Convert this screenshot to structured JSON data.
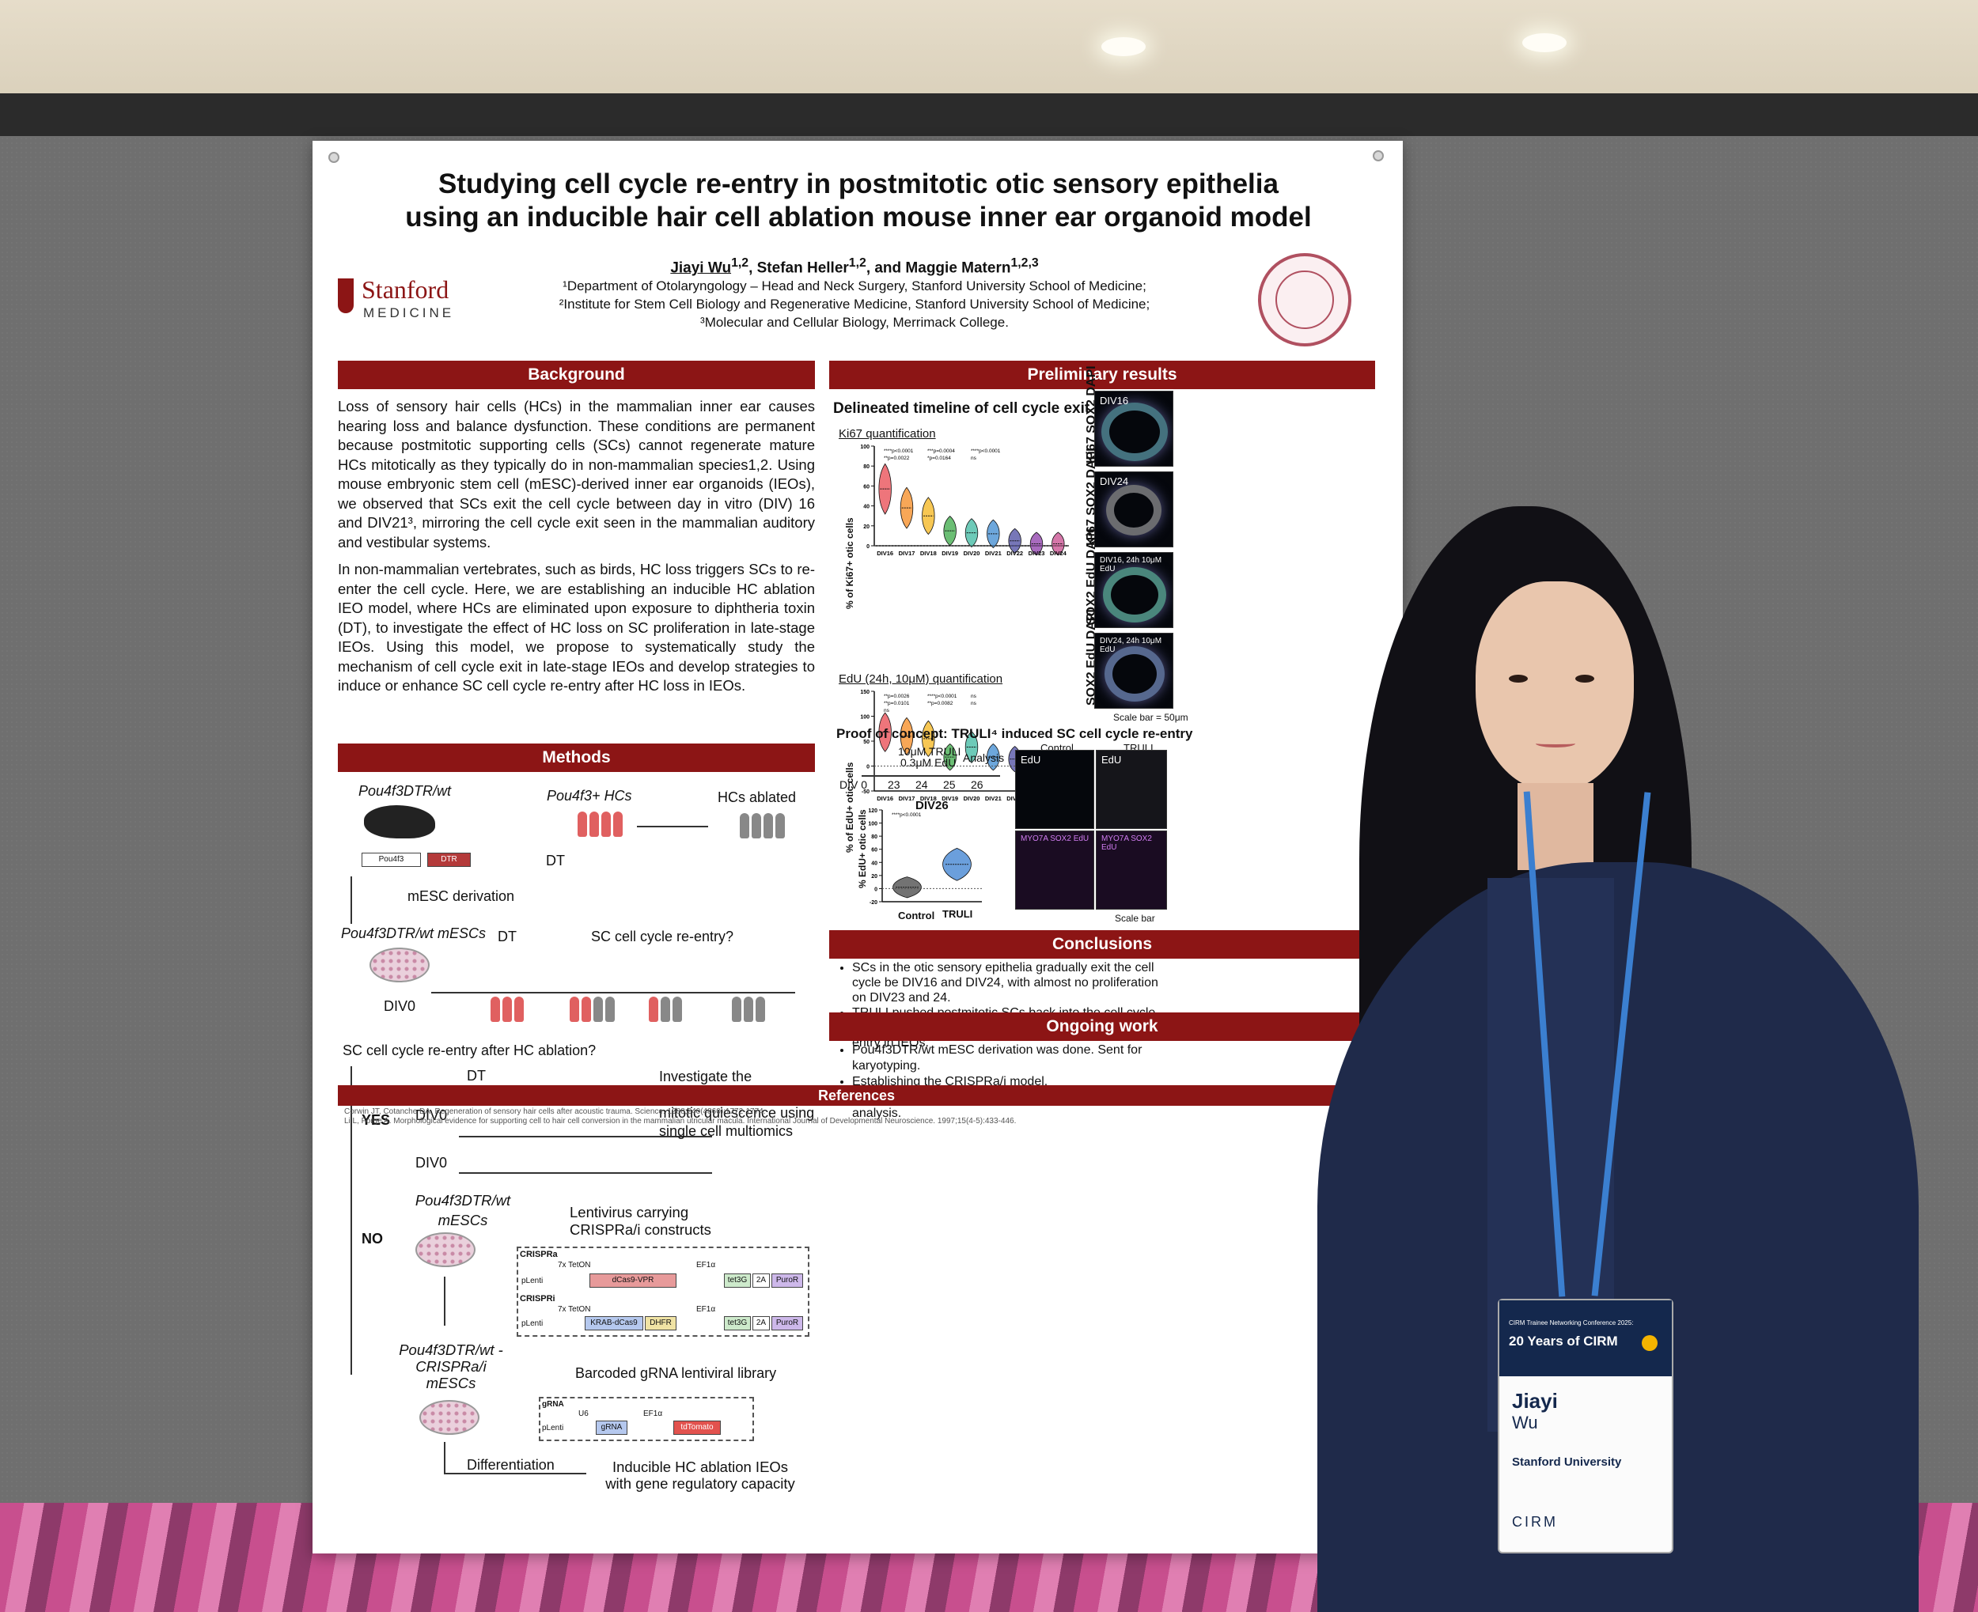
{
  "poster": {
    "title_line1": "Studying cell cycle re-entry in postmitotic otic sensory epithelia",
    "title_line2": "using an inducible hair cell ablation mouse inner ear organoid model",
    "author_first": "Jiayi Wu",
    "author_first_sup": "1,2",
    "authors_rest": ", Stefan Heller",
    "authors_rest_sup": "1,2",
    "authors_and": ", and Maggie Matern",
    "authors_and_sup": "1,2,3",
    "affil1": "¹Department of Otolaryngology – Head and Neck Surgery, Stanford University School of Medicine;",
    "affil2": "²Institute for Stem Cell Biology and Regenerative Medicine, Stanford University School of Medicine;",
    "affil3": "³Molecular and Cellular Biology, Merrimack College.",
    "logo_name": "Stanford",
    "logo_sub": "MEDICINE",
    "background": {
      "header": "Background",
      "para1": "Loss of sensory hair cells (HCs) in the mammalian inner ear causes hearing loss and balance dysfunction. These conditions are permanent because postmitotic supporting cells (SCs) cannot regenerate mature HCs mitotically as they typically do in non-mammalian species1,2. Using mouse embryonic stem cell (mESC)-derived inner ear organoids (IEOs), we observed that SCs exit the cell cycle between day in vitro (DIV) 16 and DIV21³, mirroring the cell cycle exit seen in the mammalian auditory and vestibular systems.",
      "para2": "In non-mammalian vertebrates, such as birds, HC loss triggers SCs to re-enter the cell cycle. Here, we are establishing an inducible HC ablation IEO model, where HCs are eliminated upon exposure to diphtheria toxin (DT), to investigate the effect of HC loss on SC proliferation in late-stage IEOs. Using this model, we propose to systematically study the mechanism of cell cycle exit in late-stage IEOs and develop strategies to induce or enhance SC cell cycle re-entry after HC loss in IEOs."
    },
    "methods": {
      "header": "Methods",
      "pou_mouse": "Pou4f3DTR/wt",
      "pou_hcs": "Pou4f3+ HCs",
      "hcs_ablated": "HCs ablated",
      "gene_pou": "Pou4f3",
      "gene_dtr": "DTR",
      "dt": "DT",
      "mesc_derivation": "mESC derivation",
      "pou_mescs": "Pou4f3DTR/wt mESCs",
      "sc_reentry_q": "SC cell cycle re-entry?",
      "div0": "DIV0",
      "question": "SC cell cycle re-entry after HC ablation?",
      "yes": "YES",
      "no": "NO",
      "investigate": "Investigate the mechanism that disrupts mitotic quiescence using single cell multiomics",
      "pou_mescs2": "Pou4f3DTR/wt mESCs",
      "lentivirus": "Lentivirus carrying CRISPRa/i constructs",
      "crispra": "CRISPRa",
      "crispri": "CRISPRi",
      "tetop": "7x TetON",
      "ef1a": "EF1α",
      "plenti": "pLenti",
      "dcas9vpr": "dCas9-VPR",
      "krab": "KRAB-dCas9",
      "dhfr": "DHFR",
      "tet3g": "tet3G",
      "twoA": "2A",
      "puror": "PuroR",
      "pou_crispr": "Pou4f3DTR/wt -CRISPRa/i mESCs",
      "barcoded": "Barcoded gRNA lentiviral library",
      "grna_box": "gRNA",
      "u6": "U6",
      "grna": "gRNA",
      "tdtomato": "tdTomato",
      "differentiation": "Differentiation",
      "inducible": "Inducible HC ablation IEOs with gene regulatory capacity"
    },
    "results": {
      "header": "Preliminary results",
      "subtitle": "Delineated timeline of cell cycle exit",
      "ki67_label": "Ki67 quantification",
      "ki67_ylabel": "% of Ki67+ otic cells",
      "edu_label": "EdU (24h, 10μM) quantification",
      "edu_ylabel": "% of EdU+ otic cells",
      "proof_title": "Proof of concept: TRULI⁴ induced SC cell cycle re-entry",
      "truli_line1": "10μM TRULI",
      "truli_line2": "0.3μM EdU",
      "analysis": "Analysis",
      "div_axis": "DIV 0",
      "div26": "DIV26",
      "div26_ylabel": "% EdU+ otic cells",
      "control": "Control",
      "truli": "TRULI",
      "scale_bar": "Scale bar = 50μm",
      "scale_bar2": "Scale bar",
      "img_labels": [
        "DIV16",
        "DIV24",
        "DIV16, 24h 10μM EdU",
        "DIV24, 24h 10μM EdU"
      ],
      "stain_labels": [
        "Ki67 SOX2 DAPI",
        "Ki67 SOX2 DAPI",
        "SOX2 EdU DAPI",
        "SOX2 EdU DAPI"
      ],
      "edu_tag": "EdU",
      "myo_tag": "MYO7A SOX2 EdU"
    },
    "conclusions": {
      "header": "Conclusions",
      "items": [
        "SCs in the otic sensory epithelia gradually exit the cell cycle be DIV16 and DIV24, with almost no proliferation on DIV23 and 24.",
        "TRULI pushed postmitotic SCs back into the cell cycle, serving as a -of-concept for inducing SC cell cycle re-entry in IEOs."
      ]
    },
    "ongoing": {
      "header": "Ongoing work",
      "items": [
        "Pou4f3DTR/wt mESC derivation was done. Sent for karyotyping.",
        "Establishing the CRISPRa/i model.",
        "Identifying key SC cell cycle regulators via scRNA-seq analysis."
      ]
    },
    "references": {
      "header": "References",
      "items": [
        "Corwin JT, Cotanche DA. Regeneration of sensory hair cells after acoustic trauma. Science. 1988;240(4860):1772-1774.",
        "Li L, Forge A. Morphological evidence for supporting cell to hair cell conversion in the mammalian utricular macula. International Journal of Developmental Neuroscience. 1997;15(4-5):433-446."
      ]
    }
  },
  "badge": {
    "conference": "CIRM Trainee Networking Conference 2025:",
    "years": "20 Years of CIRM",
    "first_name": "Jiayi",
    "last_name": "Wu",
    "org": "Stanford University",
    "footer": "CIRM"
  },
  "chart_data": [
    {
      "type": "violin",
      "title": "Ki67 quantification",
      "ylabel": "% of Ki67+ otic cells",
      "categories": [
        "DIV16",
        "DIV17",
        "DIV18",
        "DIV19",
        "DIV20",
        "DIV21",
        "DIV22",
        "DIV23",
        "DIV24"
      ],
      "values": [
        57,
        38,
        30,
        15,
        13,
        12,
        5,
        2,
        2
      ],
      "yticks": [
        0,
        20,
        40,
        60,
        80,
        100
      ],
      "ylim": [
        0,
        100
      ],
      "colors": [
        "#e8474f",
        "#f58a1f",
        "#f4b41a",
        "#39a845",
        "#3cb8a0",
        "#3c8ad0",
        "#4a4aa0",
        "#8b3aa8",
        "#c74a8c"
      ],
      "annotations": [
        "****p<0.0001",
        "***p=0.0004",
        "****p<0.0001",
        "**p=0.0022",
        "*p=0.0164",
        "ns"
      ]
    },
    {
      "type": "violin",
      "title": "EdU (24h, 10μM) quantification",
      "ylabel": "% of EdU+ otic cells",
      "categories": [
        "DIV16",
        "DIV17",
        "DIV18",
        "DIV19",
        "DIV20",
        "DIV21",
        "DIV22",
        "DIV23",
        "DIV24"
      ],
      "values": [
        68,
        60,
        55,
        18,
        38,
        18,
        14,
        8,
        6
      ],
      "yticks": [
        -50,
        0,
        50,
        100,
        150
      ],
      "ylim": [
        -50,
        150
      ],
      "colors": [
        "#e8474f",
        "#f58a1f",
        "#f4b41a",
        "#39a845",
        "#3cb8a0",
        "#3c8ad0",
        "#4a4aa0",
        "#8b3aa8",
        "#c74a8c"
      ],
      "annotations": [
        "**p=0.0026",
        "****p<0.0001",
        "ns",
        "**p=0.0101",
        "**p=0.0082",
        "ns",
        "ns"
      ]
    },
    {
      "type": "violin",
      "title": "DIV26",
      "ylabel": "% EdU+ otic cells",
      "categories": [
        "Control",
        "TRULI"
      ],
      "values": [
        2,
        37
      ],
      "yticks": [
        -20,
        0,
        20,
        40,
        60,
        80,
        100,
        120
      ],
      "ylim": [
        -20,
        120
      ],
      "annotations": [
        "****p<0.0001"
      ]
    }
  ],
  "timeline": {
    "days": [
      "23",
      "24",
      "25",
      "26"
    ]
  }
}
